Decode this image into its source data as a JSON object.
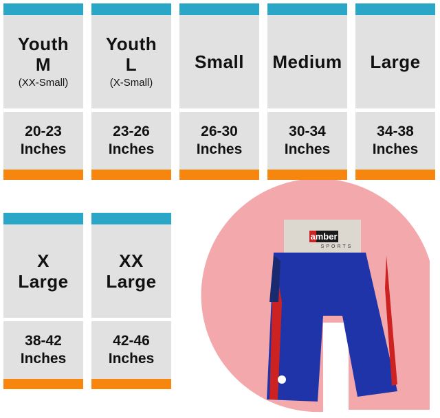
{
  "colors": {
    "header_bar": "#2aa6c6",
    "panel": "#e1e1e1",
    "footer_bar": "#f7860f",
    "backdrop": "#f3a9ab"
  },
  "sizes": [
    {
      "name_lines": [
        "Youth",
        "M"
      ],
      "alt": "(XX-Small)",
      "range": "20-23",
      "unit": "Inches"
    },
    {
      "name_lines": [
        "Youth",
        "L"
      ],
      "alt": "(X-Small)",
      "range": "23-26",
      "unit": "Inches"
    },
    {
      "name_lines": [
        "Small"
      ],
      "alt": "",
      "range": "26-30",
      "unit": "Inches"
    },
    {
      "name_lines": [
        "Medium"
      ],
      "alt": "",
      "range": "30-34",
      "unit": "Inches"
    },
    {
      "name_lines": [
        "Large"
      ],
      "alt": "",
      "range": "34-38",
      "unit": "Inches"
    },
    {
      "name_lines": [
        "X",
        "Large"
      ],
      "alt": "",
      "range": "38-42",
      "unit": "Inches"
    },
    {
      "name_lines": [
        "XX",
        "Large"
      ],
      "alt": "",
      "range": "42-46",
      "unit": "Inches"
    }
  ],
  "product": {
    "brand": "amber",
    "brand_sub": "SPORTS"
  }
}
